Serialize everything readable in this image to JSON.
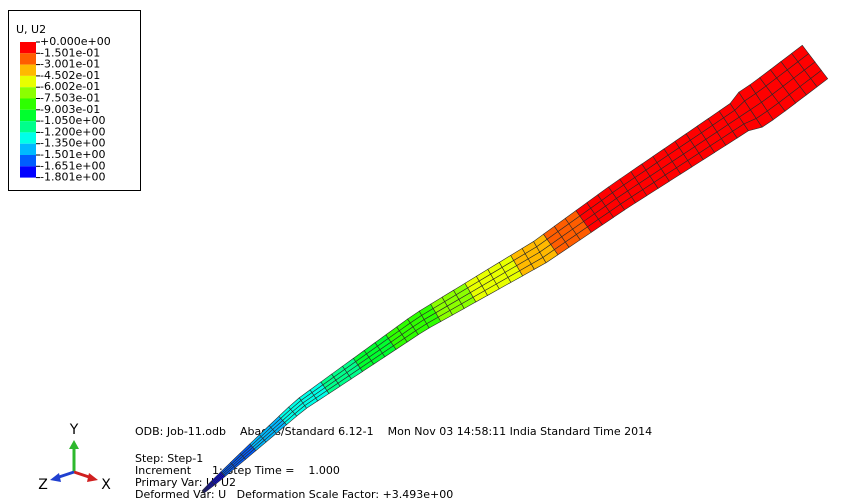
{
  "legend": {
    "title": "U, U2",
    "labels": [
      "+0.000e+00",
      "-1.501e-01",
      "-3.001e-01",
      "-4.502e-01",
      "-6.002e-01",
      "-7.503e-01",
      "-9.003e-01",
      "-1.050e+00",
      "-1.200e+00",
      "-1.350e+00",
      "-1.501e+00",
      "-1.651e+00",
      "-1.801e+00"
    ],
    "colors": [
      "#ff0000",
      "#ff5d00",
      "#ffb900",
      "#e8ff00",
      "#8bff00",
      "#2eff00",
      "#00ff2e",
      "#00ff8b",
      "#00ffe8",
      "#00b9ff",
      "#005dff",
      "#0000ff"
    ]
  },
  "info": {
    "odb": "ODB: Job-11.odb    Abaqus/Standard 6.12-1    Mon Nov 03 14:58:11 India Standard Time 2014",
    "lines": [
      "Step: Step-1",
      "Increment      1: Step Time =    1.000",
      "Primary Var: U, U2",
      "Deformed Var: U   Deformation Scale Factor: +3.493e+00"
    ]
  },
  "triad": {
    "x": "X",
    "y": "Y",
    "z": "Z"
  }
}
